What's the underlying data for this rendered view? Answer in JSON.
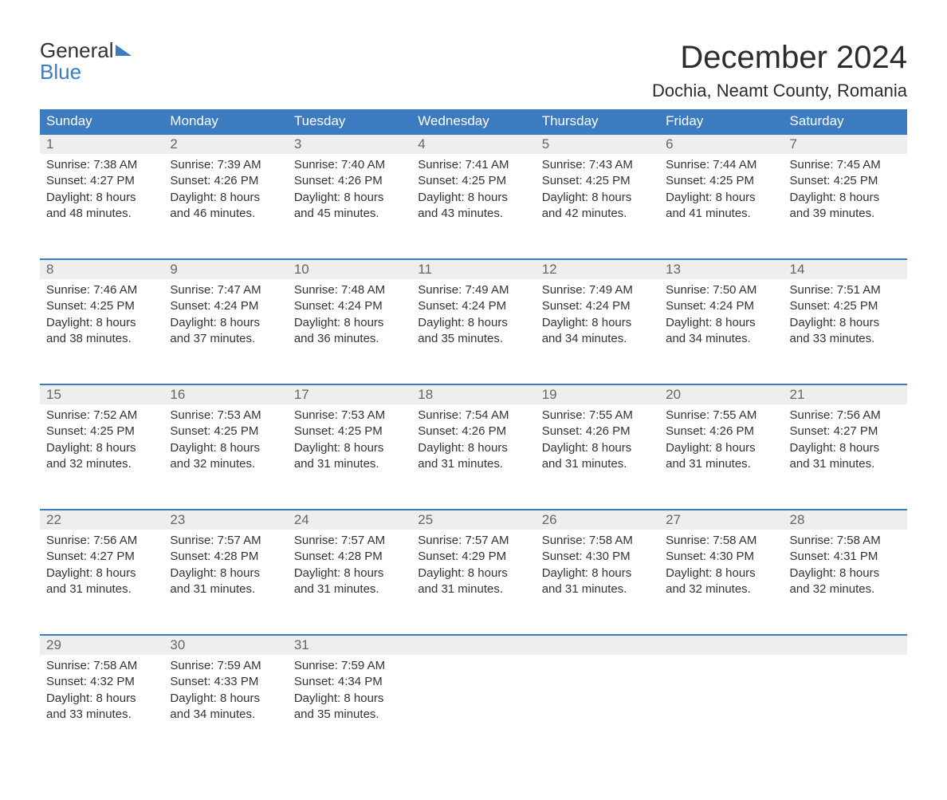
{
  "colors": {
    "brand_blue": "#3c7bbf",
    "header_bg": "#3c7bbf",
    "header_text": "#ffffff",
    "daynum_bg": "#eeeeee",
    "daynum_text": "#666666",
    "body_text": "#333333",
    "page_bg": "#ffffff",
    "week_top_border": "#3c7bbf"
  },
  "typography": {
    "month_title_fontsize": 40,
    "location_fontsize": 22,
    "header_fontsize": 17,
    "daynum_fontsize": 17,
    "cell_fontsize": 15,
    "logo_fontsize": 26
  },
  "logo": {
    "text1": "General",
    "text2": "Blue"
  },
  "month_title": "December 2024",
  "location": "Dochia, Neamt County, Romania",
  "day_headers": [
    "Sunday",
    "Monday",
    "Tuesday",
    "Wednesday",
    "Thursday",
    "Friday",
    "Saturday"
  ],
  "weeks": [
    [
      {
        "n": "1",
        "sunrise": "Sunrise: 7:38 AM",
        "sunset": "Sunset: 4:27 PM",
        "d1": "Daylight: 8 hours",
        "d2": "and 48 minutes."
      },
      {
        "n": "2",
        "sunrise": "Sunrise: 7:39 AM",
        "sunset": "Sunset: 4:26 PM",
        "d1": "Daylight: 8 hours",
        "d2": "and 46 minutes."
      },
      {
        "n": "3",
        "sunrise": "Sunrise: 7:40 AM",
        "sunset": "Sunset: 4:26 PM",
        "d1": "Daylight: 8 hours",
        "d2": "and 45 minutes."
      },
      {
        "n": "4",
        "sunrise": "Sunrise: 7:41 AM",
        "sunset": "Sunset: 4:25 PM",
        "d1": "Daylight: 8 hours",
        "d2": "and 43 minutes."
      },
      {
        "n": "5",
        "sunrise": "Sunrise: 7:43 AM",
        "sunset": "Sunset: 4:25 PM",
        "d1": "Daylight: 8 hours",
        "d2": "and 42 minutes."
      },
      {
        "n": "6",
        "sunrise": "Sunrise: 7:44 AM",
        "sunset": "Sunset: 4:25 PM",
        "d1": "Daylight: 8 hours",
        "d2": "and 41 minutes."
      },
      {
        "n": "7",
        "sunrise": "Sunrise: 7:45 AM",
        "sunset": "Sunset: 4:25 PM",
        "d1": "Daylight: 8 hours",
        "d2": "and 39 minutes."
      }
    ],
    [
      {
        "n": "8",
        "sunrise": "Sunrise: 7:46 AM",
        "sunset": "Sunset: 4:25 PM",
        "d1": "Daylight: 8 hours",
        "d2": "and 38 minutes."
      },
      {
        "n": "9",
        "sunrise": "Sunrise: 7:47 AM",
        "sunset": "Sunset: 4:24 PM",
        "d1": "Daylight: 8 hours",
        "d2": "and 37 minutes."
      },
      {
        "n": "10",
        "sunrise": "Sunrise: 7:48 AM",
        "sunset": "Sunset: 4:24 PM",
        "d1": "Daylight: 8 hours",
        "d2": "and 36 minutes."
      },
      {
        "n": "11",
        "sunrise": "Sunrise: 7:49 AM",
        "sunset": "Sunset: 4:24 PM",
        "d1": "Daylight: 8 hours",
        "d2": "and 35 minutes."
      },
      {
        "n": "12",
        "sunrise": "Sunrise: 7:49 AM",
        "sunset": "Sunset: 4:24 PM",
        "d1": "Daylight: 8 hours",
        "d2": "and 34 minutes."
      },
      {
        "n": "13",
        "sunrise": "Sunrise: 7:50 AM",
        "sunset": "Sunset: 4:24 PM",
        "d1": "Daylight: 8 hours",
        "d2": "and 34 minutes."
      },
      {
        "n": "14",
        "sunrise": "Sunrise: 7:51 AM",
        "sunset": "Sunset: 4:25 PM",
        "d1": "Daylight: 8 hours",
        "d2": "and 33 minutes."
      }
    ],
    [
      {
        "n": "15",
        "sunrise": "Sunrise: 7:52 AM",
        "sunset": "Sunset: 4:25 PM",
        "d1": "Daylight: 8 hours",
        "d2": "and 32 minutes."
      },
      {
        "n": "16",
        "sunrise": "Sunrise: 7:53 AM",
        "sunset": "Sunset: 4:25 PM",
        "d1": "Daylight: 8 hours",
        "d2": "and 32 minutes."
      },
      {
        "n": "17",
        "sunrise": "Sunrise: 7:53 AM",
        "sunset": "Sunset: 4:25 PM",
        "d1": "Daylight: 8 hours",
        "d2": "and 31 minutes."
      },
      {
        "n": "18",
        "sunrise": "Sunrise: 7:54 AM",
        "sunset": "Sunset: 4:26 PM",
        "d1": "Daylight: 8 hours",
        "d2": "and 31 minutes."
      },
      {
        "n": "19",
        "sunrise": "Sunrise: 7:55 AM",
        "sunset": "Sunset: 4:26 PM",
        "d1": "Daylight: 8 hours",
        "d2": "and 31 minutes."
      },
      {
        "n": "20",
        "sunrise": "Sunrise: 7:55 AM",
        "sunset": "Sunset: 4:26 PM",
        "d1": "Daylight: 8 hours",
        "d2": "and 31 minutes."
      },
      {
        "n": "21",
        "sunrise": "Sunrise: 7:56 AM",
        "sunset": "Sunset: 4:27 PM",
        "d1": "Daylight: 8 hours",
        "d2": "and 31 minutes."
      }
    ],
    [
      {
        "n": "22",
        "sunrise": "Sunrise: 7:56 AM",
        "sunset": "Sunset: 4:27 PM",
        "d1": "Daylight: 8 hours",
        "d2": "and 31 minutes."
      },
      {
        "n": "23",
        "sunrise": "Sunrise: 7:57 AM",
        "sunset": "Sunset: 4:28 PM",
        "d1": "Daylight: 8 hours",
        "d2": "and 31 minutes."
      },
      {
        "n": "24",
        "sunrise": "Sunrise: 7:57 AM",
        "sunset": "Sunset: 4:28 PM",
        "d1": "Daylight: 8 hours",
        "d2": "and 31 minutes."
      },
      {
        "n": "25",
        "sunrise": "Sunrise: 7:57 AM",
        "sunset": "Sunset: 4:29 PM",
        "d1": "Daylight: 8 hours",
        "d2": "and 31 minutes."
      },
      {
        "n": "26",
        "sunrise": "Sunrise: 7:58 AM",
        "sunset": "Sunset: 4:30 PM",
        "d1": "Daylight: 8 hours",
        "d2": "and 31 minutes."
      },
      {
        "n": "27",
        "sunrise": "Sunrise: 7:58 AM",
        "sunset": "Sunset: 4:30 PM",
        "d1": "Daylight: 8 hours",
        "d2": "and 32 minutes."
      },
      {
        "n": "28",
        "sunrise": "Sunrise: 7:58 AM",
        "sunset": "Sunset: 4:31 PM",
        "d1": "Daylight: 8 hours",
        "d2": "and 32 minutes."
      }
    ],
    [
      {
        "n": "29",
        "sunrise": "Sunrise: 7:58 AM",
        "sunset": "Sunset: 4:32 PM",
        "d1": "Daylight: 8 hours",
        "d2": "and 33 minutes."
      },
      {
        "n": "30",
        "sunrise": "Sunrise: 7:59 AM",
        "sunset": "Sunset: 4:33 PM",
        "d1": "Daylight: 8 hours",
        "d2": "and 34 minutes."
      },
      {
        "n": "31",
        "sunrise": "Sunrise: 7:59 AM",
        "sunset": "Sunset: 4:34 PM",
        "d1": "Daylight: 8 hours",
        "d2": "and 35 minutes."
      },
      null,
      null,
      null,
      null
    ]
  ]
}
